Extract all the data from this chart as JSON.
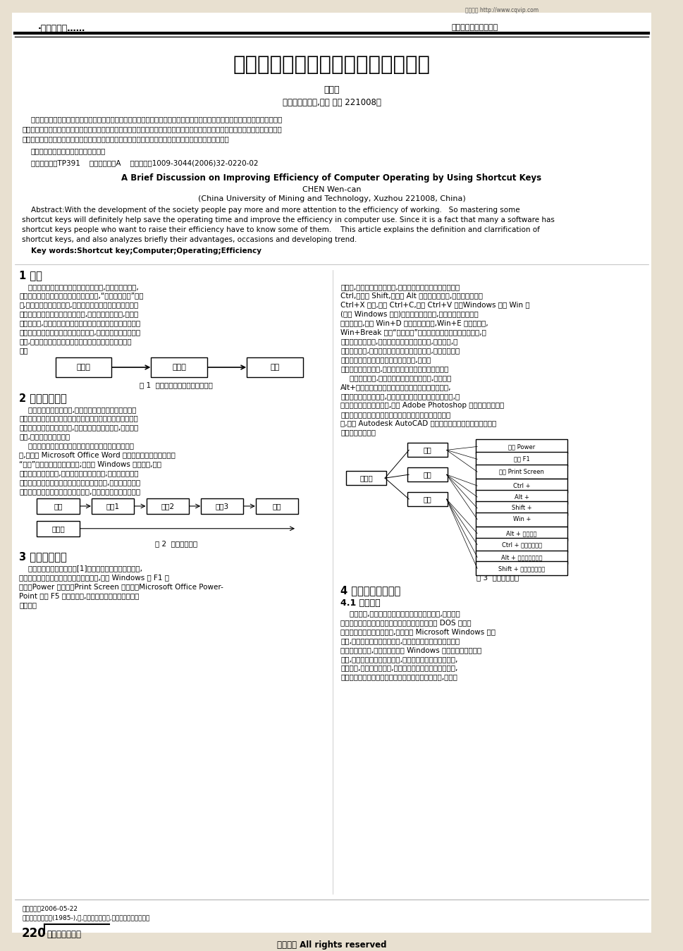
{
  "bg_color": "#e8e0d0",
  "paper_bg": "#ffffff",
  "top_url": "维普资讯 http://www.cqvip.com",
  "header_left": "·计算机教育……",
  "header_right": "本栏目责任编辑：王力",
  "main_title": "利用快捷键提高计算机操作效率浅谈",
  "author_cn": "陈文灿",
  "affiliation_cn": "（中国矿业大学,江苏 徐州 221008）",
  "keywords_cn": "关键词：快捷键；计算机；操作；效率",
  "classification": "中国分类号：TP391    文献标识码：A    文章编号：1009-3044(2006)32-0220-02",
  "title_en": "A Brief Discussion on Improving Efficiency of Computer Operating by Using Shortcut Keys",
  "author_en": "CHEN Wen-can",
  "affiliation_en": "(China University of Mining and Technology, Xuzhou 221008, China)",
  "keywords_en": "Key words:Shortcut key;Computer;Operating;Efficiency",
  "sec1_title": "1 引言",
  "fig1_label": "图 1  快捷键与计算机及效率的关系",
  "sec2_title": "2 快捷键的定义",
  "fig2_label": "图 2  快捷键的原理",
  "sec3_title": "3 快捹键的分类",
  "fig3_label": "图 3  快捷键的分类",
  "sec4_title": "4 使用快捷键的优点",
  "sec41_title": "4.1 方便快捷",
  "footer_page": "220",
  "footer_journal": "电脑知识与技术",
  "footer_copyright": "维普资讯 All rights reserved"
}
